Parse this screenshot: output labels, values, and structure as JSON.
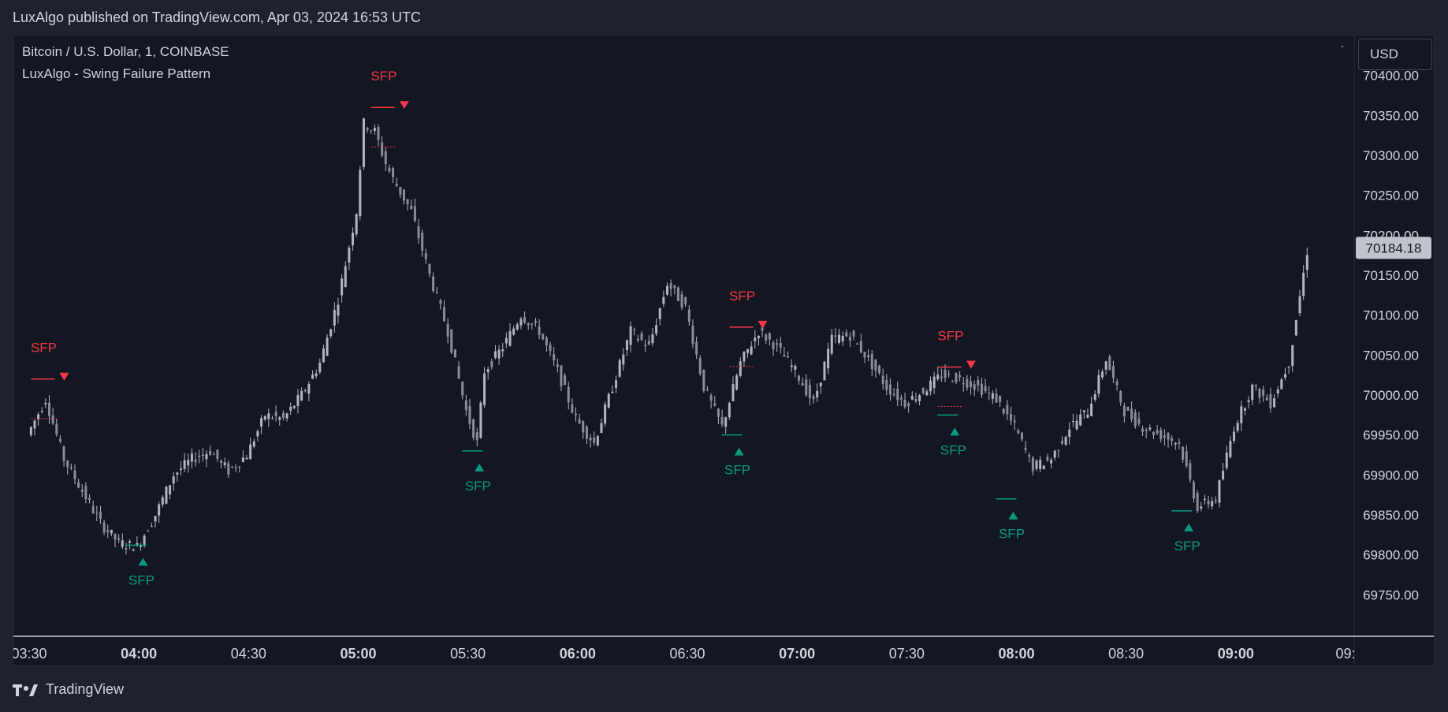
{
  "header": {
    "published": "LuxAlgo published on TradingView.com, Apr 03, 2024 16:53 UTC"
  },
  "chart_titles": {
    "symbol": "Bitcoin / U.S. Dollar, 1, COINBASE",
    "indicator": "LuxAlgo - Swing Failure Pattern"
  },
  "currency": "USD",
  "footer": {
    "brand": "TradingView"
  },
  "colors": {
    "background": "#131722",
    "candle": "#b2b5be",
    "bearish_signal": "#f23645",
    "bullish_signal": "#089981",
    "grid": "#1f2330",
    "axis_text": "#d1d4dc",
    "last_price_badge": "#c0c3cc"
  },
  "chart_data": {
    "type": "line",
    "title": "Bitcoin / U.S. Dollar, 1, COINBASE",
    "xlabel": "",
    "ylabel": "",
    "ylim": [
      69700,
      70450
    ],
    "y_ticks": [
      "70400.00",
      "70350.00",
      "70300.00",
      "70250.00",
      "70200.00",
      "70150.00",
      "70100.00",
      "70050.00",
      "70000.00",
      "69950.00",
      "69900.00",
      "69850.00",
      "69800.00",
      "69750.00"
    ],
    "x_ticks": [
      {
        "label": "03:30",
        "bold": false
      },
      {
        "label": "04:00",
        "bold": true
      },
      {
        "label": "04:30",
        "bold": false
      },
      {
        "label": "05:00",
        "bold": true
      },
      {
        "label": "05:30",
        "bold": false
      },
      {
        "label": "06:00",
        "bold": true
      },
      {
        "label": "06:30",
        "bold": false
      },
      {
        "label": "07:00",
        "bold": true
      },
      {
        "label": "07:30",
        "bold": false
      },
      {
        "label": "08:00",
        "bold": true
      },
      {
        "label": "08:30",
        "bold": false
      },
      {
        "label": "09:00",
        "bold": true
      },
      {
        "label": "09:",
        "bold": false
      }
    ],
    "last_price": "70184.18",
    "series": [
      {
        "name": "",
        "x": [
          "03:30",
          "03:35",
          "03:40",
          "03:45",
          "03:50",
          "03:55",
          "04:00",
          "04:05",
          "04:10",
          "04:15",
          "04:20",
          "04:25",
          "04:30",
          "04:35",
          "04:40",
          "04:45",
          "04:50",
          "04:55",
          "05:00",
          "05:02",
          "05:05",
          "05:08",
          "05:10",
          "05:15",
          "05:20",
          "05:25",
          "05:30",
          "05:33",
          "05:35",
          "05:40",
          "05:45",
          "05:50",
          "05:55",
          "06:00",
          "06:05",
          "06:10",
          "06:15",
          "06:20",
          "06:25",
          "06:30",
          "06:35",
          "06:40",
          "06:45",
          "06:50",
          "06:55",
          "07:00",
          "07:05",
          "07:10",
          "07:15",
          "07:20",
          "07:25",
          "07:30",
          "07:35",
          "07:40",
          "07:45",
          "07:50",
          "07:55",
          "08:00",
          "08:05",
          "08:10",
          "08:15",
          "08:20",
          "08:25",
          "08:30",
          "08:35",
          "08:40",
          "08:45",
          "08:50",
          "08:55",
          "09:00",
          "09:05",
          "09:10",
          "09:15",
          "09:20"
        ],
        "values": [
          69950,
          69995,
          69920,
          69880,
          69840,
          69815,
          69810,
          69850,
          69900,
          69920,
          69930,
          69905,
          69925,
          69975,
          69970,
          70000,
          70040,
          70120,
          70230,
          70340,
          70330,
          70290,
          70270,
          70230,
          70150,
          70080,
          69980,
          69940,
          70030,
          70060,
          70100,
          70080,
          70030,
          69970,
          69940,
          70010,
          70080,
          70060,
          70140,
          70110,
          70010,
          69960,
          70040,
          70080,
          70060,
          70030,
          69990,
          70070,
          70075,
          70045,
          70010,
          69990,
          70005,
          70025,
          70020,
          70010,
          69995,
          69960,
          69910,
          69920,
          69960,
          69980,
          70045,
          69980,
          69960,
          69950,
          69940,
          69860,
          69870,
          69960,
          70010,
          69990,
          70040,
          70180
        ]
      }
    ],
    "annotations": [
      {
        "label": "SFP",
        "type": "bearish",
        "time": "03:37",
        "price": 70020
      },
      {
        "label": "SFP",
        "type": "bullish",
        "time": "04:02",
        "price": 69812
      },
      {
        "label": "SFP",
        "type": "bearish",
        "time": "05:10",
        "price": 70360
      },
      {
        "label": "SFP",
        "type": "bullish",
        "time": "05:34",
        "price": 69930
      },
      {
        "label": "SFP",
        "type": "bearish",
        "time": "06:48",
        "price": 70085
      },
      {
        "label": "SFP",
        "type": "bullish",
        "time": "06:45",
        "price": 69950
      },
      {
        "label": "SFP",
        "type": "bearish",
        "time": "07:45",
        "price": 70035
      },
      {
        "label": "SFP",
        "type": "bullish",
        "time": "07:44",
        "price": 69975
      },
      {
        "label": "SFP",
        "type": "bullish",
        "time": "08:00",
        "price": 69870
      },
      {
        "label": "SFP",
        "type": "bullish",
        "time": "08:48",
        "price": 69855
      }
    ]
  }
}
